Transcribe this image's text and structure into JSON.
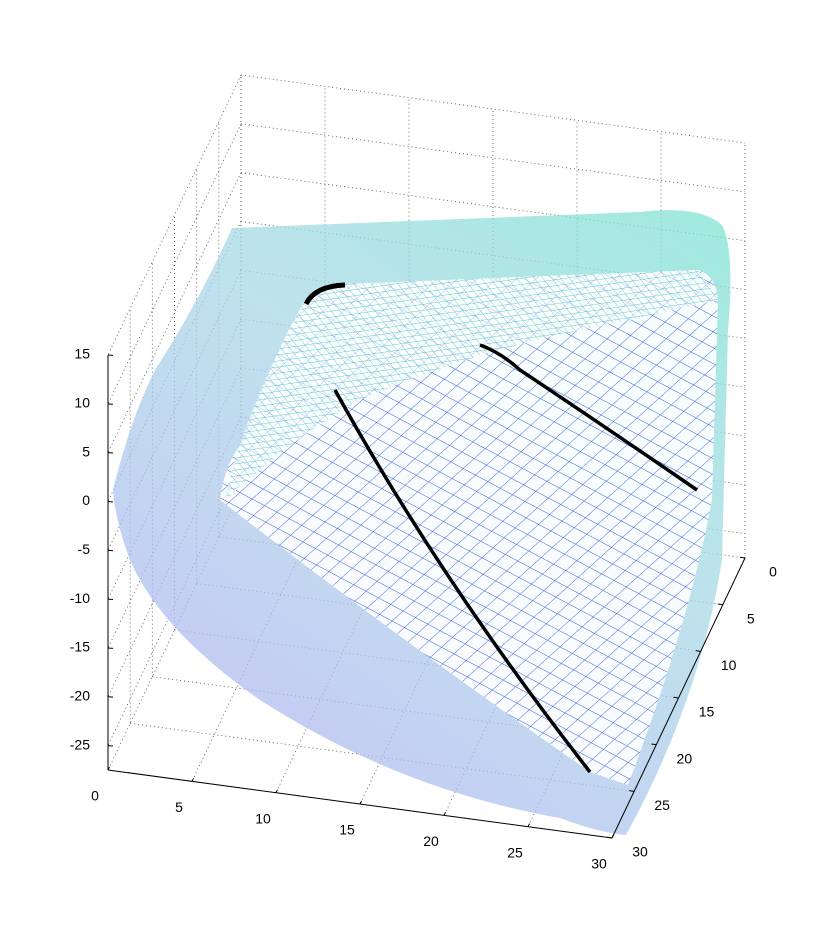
{
  "chart_data": {
    "type": "surface3d",
    "xlim": [
      0,
      30
    ],
    "ylim": [
      0,
      30
    ],
    "zlim": [
      -27.5,
      15
    ],
    "xticks": [
      0,
      5,
      10,
      15,
      20,
      25,
      30
    ],
    "yticks": [
      0,
      5,
      10,
      15,
      20,
      25,
      30
    ],
    "zticks": [
      -25,
      -20,
      -15,
      -10,
      -5,
      0,
      5,
      10,
      15
    ],
    "grid": true
  }
}
